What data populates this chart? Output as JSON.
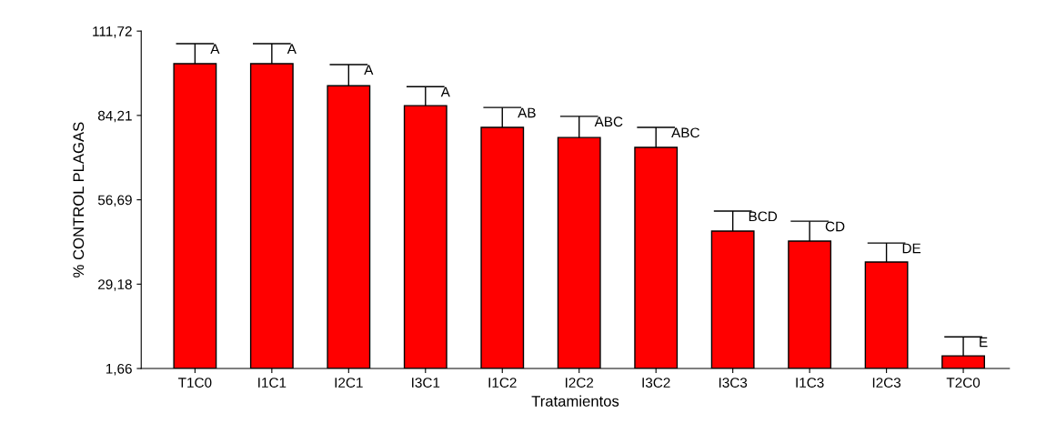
{
  "chart_data": {
    "type": "bar",
    "xlabel": "Tratamientos",
    "ylabel": "% CONTROL PLAGAS",
    "categories": [
      "T1C0",
      "I1C1",
      "I2C1",
      "I3C1",
      "I1C2",
      "I2C2",
      "I3C2",
      "I3C3",
      "I1C3",
      "I2C3",
      "T2C0"
    ],
    "values": [
      101.1,
      101.1,
      93.9,
      87.4,
      80.3,
      77.0,
      73.8,
      46.5,
      43.2,
      36.4,
      5.8
    ],
    "errors": [
      6.5,
      6.5,
      6.9,
      6.2,
      6.5,
      6.9,
      6.5,
      6.5,
      6.5,
      6.2,
      6.2
    ],
    "color": "#ff0000",
    "ylim": [
      1.66,
      111.72
    ],
    "yticks": [
      {
        "value": 1.66,
        "label": "1,66"
      },
      {
        "value": 29.18,
        "label": "29,18"
      },
      {
        "value": 56.69,
        "label": "56,69"
      },
      {
        "value": 84.21,
        "label": "84,21"
      },
      {
        "value": 111.72,
        "label": "111,72"
      }
    ],
    "grid": false,
    "legend": false,
    "value_labels": [
      "A",
      "A",
      "A",
      "A",
      "AB",
      "ABC",
      "ABC",
      "BCD",
      "CD",
      "DE",
      "E"
    ]
  }
}
